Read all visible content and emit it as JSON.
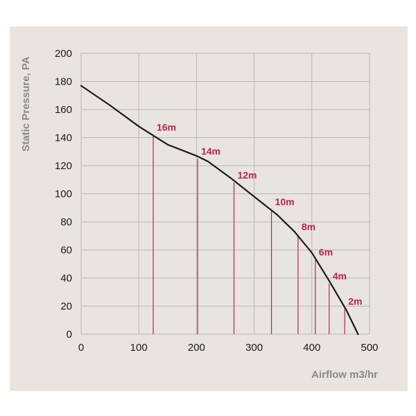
{
  "colors": {
    "background": "#e8e4df",
    "grid": "#b9b6b2",
    "curve": "#1a1a1a",
    "marker": "#b5254e",
    "axis_title": "#8a8a8a",
    "tick_text": "#1a1a1a"
  },
  "chart_data": {
    "type": "line",
    "title": "",
    "xlabel": "Airflow m3/hr",
    "ylabel": "Static Pressure, PA",
    "xlim": [
      0,
      500
    ],
    "ylim": [
      0,
      200
    ],
    "x_ticks": [
      0,
      100,
      200,
      300,
      400,
      500
    ],
    "y_ticks": [
      0,
      20,
      40,
      60,
      80,
      100,
      120,
      140,
      160,
      180,
      200
    ],
    "grid": true,
    "series": [
      {
        "values": [
          {
            "x": 0,
            "y": 177
          },
          {
            "x": 50,
            "y": 163
          },
          {
            "x": 100,
            "y": 148
          },
          {
            "x": 150,
            "y": 135
          },
          {
            "x": 200,
            "y": 127
          },
          {
            "x": 220,
            "y": 123
          },
          {
            "x": 260,
            "y": 111
          },
          {
            "x": 300,
            "y": 98
          },
          {
            "x": 340,
            "y": 85
          },
          {
            "x": 370,
            "y": 73
          },
          {
            "x": 400,
            "y": 58
          },
          {
            "x": 430,
            "y": 38
          },
          {
            "x": 460,
            "y": 17
          },
          {
            "x": 480,
            "y": 0
          }
        ]
      }
    ],
    "markers": [
      {
        "label": "16m",
        "x": 125,
        "y": 142
      },
      {
        "label": "14m",
        "x": 202,
        "y": 125
      },
      {
        "label": "12m",
        "x": 265,
        "y": 108
      },
      {
        "label": "10m",
        "x": 330,
        "y": 89
      },
      {
        "label": "8m",
        "x": 376,
        "y": 71
      },
      {
        "label": "6m",
        "x": 406,
        "y": 53
      },
      {
        "label": "4m",
        "x": 430,
        "y": 36
      },
      {
        "label": "2m",
        "x": 457,
        "y": 18
      }
    ]
  }
}
